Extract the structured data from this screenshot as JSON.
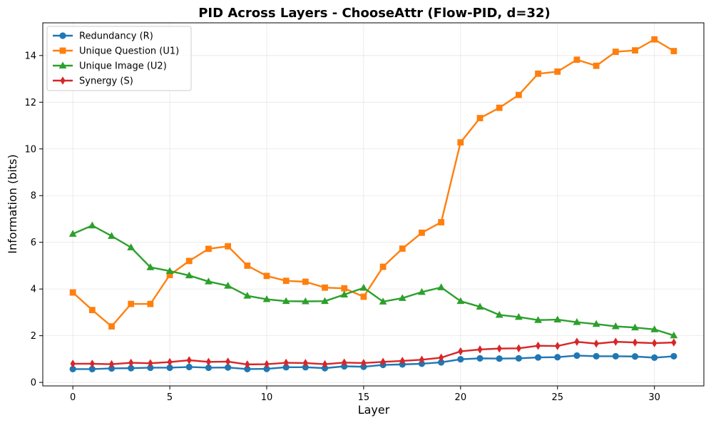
{
  "chart_data": {
    "type": "line",
    "title": "PID Across Layers - ChooseAttr (Flow-PID, d=32)",
    "xlabel": "Layer",
    "ylabel": "Information (bits)",
    "xlim": [
      -1.55,
      32.55
    ],
    "ylim": [
      -0.15,
      15.4
    ],
    "xticks": [
      0,
      5,
      10,
      15,
      20,
      25,
      30
    ],
    "yticks": [
      0,
      2,
      4,
      6,
      8,
      10,
      12,
      14
    ],
    "grid": true,
    "legend_position": "top-left",
    "x": [
      0,
      1,
      2,
      3,
      4,
      5,
      6,
      7,
      8,
      9,
      10,
      11,
      12,
      13,
      14,
      15,
      16,
      17,
      18,
      19,
      20,
      21,
      22,
      23,
      24,
      25,
      26,
      27,
      28,
      29,
      30,
      31
    ],
    "series": [
      {
        "name": "Redundancy (R)",
        "color": "#1f77b4",
        "marker": "circle",
        "values": [
          0.57,
          0.57,
          0.6,
          0.61,
          0.63,
          0.63,
          0.66,
          0.63,
          0.64,
          0.57,
          0.58,
          0.65,
          0.65,
          0.61,
          0.69,
          0.67,
          0.75,
          0.77,
          0.8,
          0.86,
          0.99,
          1.03,
          1.02,
          1.03,
          1.07,
          1.08,
          1.15,
          1.12,
          1.12,
          1.11,
          1.06,
          1.12
        ]
      },
      {
        "name": "Unique Question (U1)",
        "color": "#ff7f0e",
        "marker": "square",
        "values": [
          3.85,
          3.1,
          2.4,
          3.36,
          3.36,
          4.6,
          5.2,
          5.72,
          5.83,
          5.0,
          4.56,
          4.35,
          4.31,
          4.06,
          4.03,
          3.67,
          4.95,
          5.73,
          6.41,
          6.86,
          10.28,
          11.32,
          11.76,
          12.31,
          13.22,
          13.31,
          13.82,
          13.56,
          14.16,
          14.22,
          14.69,
          14.19
        ]
      },
      {
        "name": "Unique Image (U2)",
        "color": "#2ca02c",
        "marker": "triangle",
        "values": [
          6.36,
          6.72,
          6.27,
          5.78,
          4.93,
          4.77,
          4.58,
          4.32,
          4.14,
          3.71,
          3.56,
          3.48,
          3.47,
          3.48,
          3.76,
          4.05,
          3.46,
          3.61,
          3.87,
          4.07,
          3.48,
          3.24,
          2.89,
          2.8,
          2.67,
          2.69,
          2.58,
          2.5,
          2.4,
          2.35,
          2.27,
          2.01
        ]
      },
      {
        "name": "Synergy (S)",
        "color": "#d62728",
        "marker": "diamond",
        "values": [
          0.8,
          0.8,
          0.78,
          0.84,
          0.82,
          0.87,
          0.95,
          0.88,
          0.89,
          0.77,
          0.78,
          0.84,
          0.83,
          0.78,
          0.85,
          0.83,
          0.88,
          0.92,
          0.97,
          1.06,
          1.33,
          1.41,
          1.45,
          1.46,
          1.57,
          1.56,
          1.74,
          1.66,
          1.74,
          1.71,
          1.68,
          1.71
        ]
      }
    ]
  }
}
